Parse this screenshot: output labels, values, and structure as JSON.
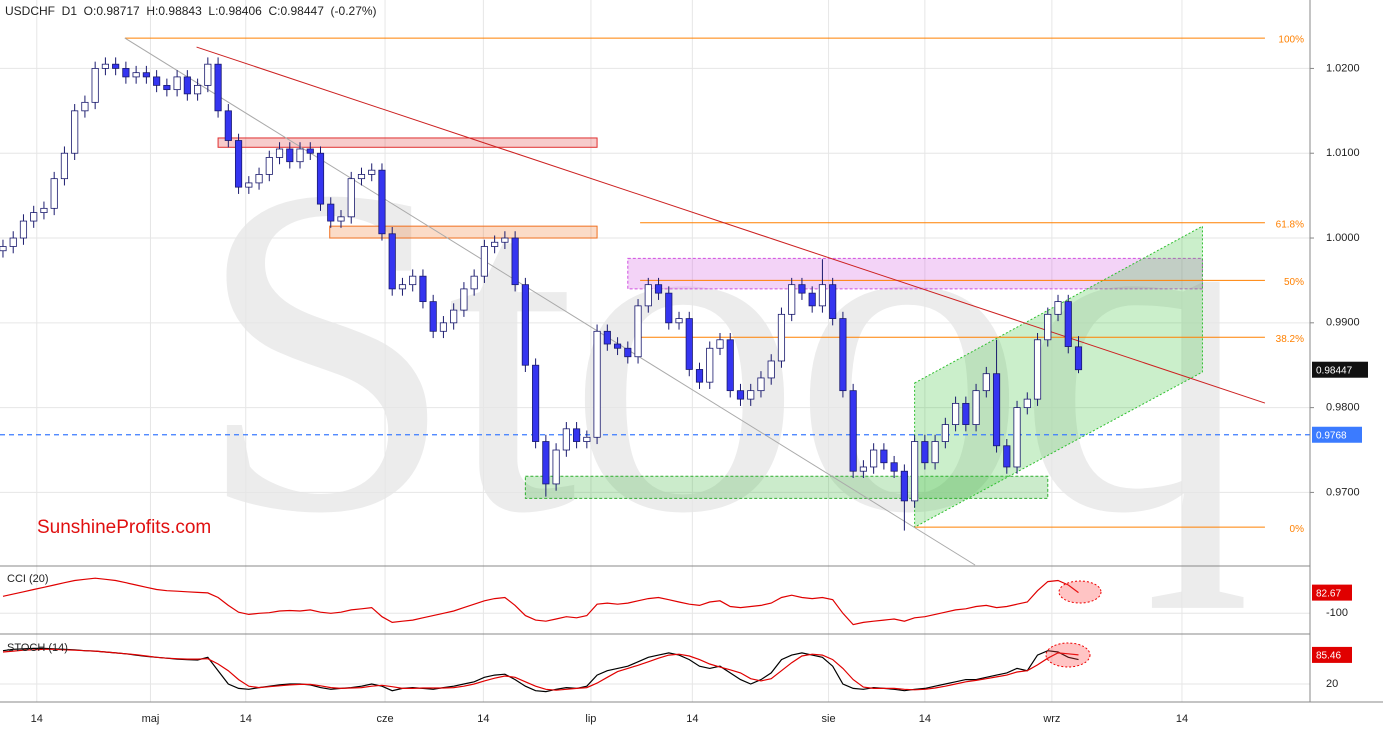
{
  "chart_data": [
    {
      "type": "candlestick",
      "header": "USDCHF  D1  O:0.98717  H:0.98843  L:0.98406  C:0.98447  (-0.27%)",
      "watermark": "Stooq",
      "brand": "SunshineProfits.com",
      "up_color": "#ffffff",
      "down_color": "#3535f0",
      "outline_color": "#1a1a6e",
      "open": [
        0.9985,
        0.999,
        1.0,
        1.002,
        1.003,
        1.0035,
        1.007,
        1.01,
        1.015,
        1.016,
        1.02,
        1.0205,
        1.02,
        1.019,
        1.0195,
        1.019,
        1.018,
        1.0175,
        1.019,
        1.017,
        1.018,
        1.0205,
        1.015,
        1.0115,
        1.006,
        1.0065,
        1.0075,
        1.0095,
        1.0105,
        1.009,
        1.0105,
        1.01,
        1.004,
        1.002,
        1.0025,
        1.007,
        1.0075,
        1.008,
        1.0005,
        0.994,
        0.9945,
        0.9955,
        0.9925,
        0.989,
        0.99,
        0.9915,
        0.994,
        0.9955,
        0.999,
        0.9995,
        1.0,
        0.9945,
        0.985,
        0.976,
        0.971,
        0.975,
        0.9775,
        0.976,
        0.9765,
        0.989,
        0.9875,
        0.987,
        0.986,
        0.992,
        0.9945,
        0.9935,
        0.99,
        0.9905,
        0.9845,
        0.983,
        0.987,
        0.988,
        0.982,
        0.981,
        0.982,
        0.9835,
        0.9855,
        0.991,
        0.9945,
        0.9935,
        0.992,
        0.9945,
        0.9905,
        0.982,
        0.9725,
        0.973,
        0.975,
        0.9735,
        0.9725,
        0.969,
        0.976,
        0.9735,
        0.976,
        0.978,
        0.9805,
        0.978,
        0.982,
        0.984,
        0.9755,
        0.973,
        0.98,
        0.981,
        0.988,
        0.991,
        0.9925,
        0.98717
      ],
      "high": [
        0.9998,
        1.0008,
        1.0028,
        1.0038,
        1.0043,
        1.0078,
        1.0108,
        1.0158,
        1.0168,
        1.0208,
        1.0213,
        1.0213,
        1.0208,
        1.0203,
        1.0203,
        1.0198,
        1.0188,
        1.0198,
        1.0198,
        1.0188,
        1.0213,
        1.0213,
        1.0158,
        1.0123,
        1.0073,
        1.0083,
        1.0103,
        1.0113,
        1.0113,
        1.0113,
        1.0113,
        1.0108,
        1.0048,
        1.0033,
        1.0078,
        1.0083,
        1.0088,
        1.0088,
        1.0013,
        0.9953,
        0.9963,
        0.9963,
        0.9933,
        0.9908,
        0.9923,
        0.9948,
        0.9963,
        0.9998,
        1.0003,
        1.0008,
        1.0008,
        0.9953,
        0.9858,
        0.9768,
        0.9758,
        0.9783,
        0.9783,
        0.9773,
        0.9898,
        0.9898,
        0.9883,
        0.9878,
        0.9928,
        0.9953,
        0.9953,
        0.9943,
        0.9913,
        0.9913,
        0.9853,
        0.9878,
        0.9888,
        0.9888,
        0.9828,
        0.9828,
        0.9843,
        0.9863,
        0.9918,
        0.9953,
        0.9953,
        0.9943,
        0.9975,
        0.9953,
        0.9913,
        0.9828,
        0.9738,
        0.9758,
        0.9758,
        0.9743,
        0.9733,
        0.9768,
        0.9768,
        0.9768,
        0.9788,
        0.9813,
        0.9813,
        0.9828,
        0.9848,
        0.988,
        0.9763,
        0.9808,
        0.9818,
        0.9888,
        0.9918,
        0.9933,
        0.9933,
        0.98843
      ],
      "low": [
        0.9977,
        0.9982,
        0.9992,
        1.0012,
        1.0022,
        1.0027,
        1.0062,
        1.0092,
        1.0142,
        1.0152,
        1.0192,
        1.0192,
        1.0182,
        1.0182,
        1.0182,
        1.0172,
        1.0167,
        1.0167,
        1.0162,
        1.0162,
        1.0172,
        1.0142,
        1.0107,
        1.0052,
        1.0052,
        1.0057,
        1.0067,
        1.0087,
        1.0082,
        1.0082,
        1.0092,
        1.0032,
        1.0012,
        1.0012,
        1.0017,
        1.0062,
        1.0067,
        0.9997,
        0.9932,
        0.9932,
        0.9937,
        0.9917,
        0.9882,
        0.9882,
        0.9892,
        0.9907,
        0.9932,
        0.9947,
        0.9982,
        0.9987,
        0.9937,
        0.9842,
        0.9752,
        0.9695,
        0.9702,
        0.9742,
        0.9752,
        0.9752,
        0.9757,
        0.9867,
        0.9862,
        0.9852,
        0.9852,
        0.9912,
        0.9927,
        0.9892,
        0.9892,
        0.9837,
        0.9822,
        0.9822,
        0.9862,
        0.9812,
        0.9802,
        0.9802,
        0.9812,
        0.9827,
        0.9847,
        0.9902,
        0.9927,
        0.9912,
        0.9912,
        0.9897,
        0.9812,
        0.9717,
        0.9717,
        0.9722,
        0.9727,
        0.9717,
        0.9655,
        0.9682,
        0.9727,
        0.9727,
        0.9752,
        0.9772,
        0.9772,
        0.9772,
        0.9812,
        0.9747,
        0.9722,
        0.9722,
        0.9792,
        0.9802,
        0.9872,
        0.9902,
        0.9864,
        0.98406
      ],
      "close": [
        0.999,
        1.0,
        1.002,
        1.003,
        1.0035,
        1.007,
        1.01,
        1.015,
        1.016,
        1.02,
        1.0205,
        1.02,
        1.019,
        1.0195,
        1.019,
        1.018,
        1.0175,
        1.019,
        1.017,
        1.018,
        1.0205,
        1.015,
        1.0115,
        1.006,
        1.0065,
        1.0075,
        1.0095,
        1.0105,
        1.009,
        1.0105,
        1.01,
        1.004,
        1.002,
        1.0025,
        1.007,
        1.0075,
        1.008,
        1.0005,
        0.994,
        0.9945,
        0.9955,
        0.9925,
        0.989,
        0.99,
        0.9915,
        0.994,
        0.9955,
        0.999,
        0.9995,
        1.0,
        0.9945,
        0.985,
        0.976,
        0.971,
        0.975,
        0.9775,
        0.976,
        0.9765,
        0.989,
        0.9875,
        0.987,
        0.986,
        0.992,
        0.9945,
        0.9935,
        0.99,
        0.9905,
        0.9845,
        0.983,
        0.987,
        0.988,
        0.982,
        0.981,
        0.982,
        0.9835,
        0.9855,
        0.991,
        0.9945,
        0.9935,
        0.992,
        0.9945,
        0.9905,
        0.982,
        0.9725,
        0.973,
        0.975,
        0.9735,
        0.9725,
        0.969,
        0.976,
        0.9735,
        0.976,
        0.978,
        0.9805,
        0.978,
        0.982,
        0.984,
        0.9755,
        0.973,
        0.98,
        0.981,
        0.988,
        0.991,
        0.9925,
        0.9872,
        0.98447
      ],
      "xlim": [
        -0.29,
        127.6
      ],
      "ylim": [
        0.96144,
        1.02807
      ],
      "yticks": [
        {
          "value": 1.02,
          "label": "1.0200"
        },
        {
          "value": 1.01,
          "label": "1.0100"
        },
        {
          "value": 1.0,
          "label": "1.0000"
        },
        {
          "value": 0.99,
          "label": "0.9900"
        },
        {
          "value": 0.98,
          "label": "0.9800"
        },
        {
          "value": 0.97,
          "label": "0.9700"
        }
      ],
      "xticks": [
        {
          "value": 3.3,
          "label": "14"
        },
        {
          "value": 14.4,
          "label": "maj"
        },
        {
          "value": 23.7,
          "label": "14"
        },
        {
          "value": 37.3,
          "label": "cze"
        },
        {
          "value": 46.9,
          "label": "14"
        },
        {
          "value": 57.4,
          "label": "lip"
        },
        {
          "value": 67.3,
          "label": "14"
        },
        {
          "value": 80.6,
          "label": "sie"
        },
        {
          "value": 90.0,
          "label": "14"
        },
        {
          "value": 102.4,
          "label": "wrz"
        },
        {
          "value": 115.1,
          "label": "14"
        }
      ],
      "grid": true,
      "zones": [
        {
          "x": [
            21.0,
            58.0
          ],
          "y": [
            1.0107,
            1.0118
          ],
          "color": "#e03030"
        },
        {
          "x": [
            31.9,
            58.0
          ],
          "y": [
            1.0,
            1.0014
          ],
          "color": "#f07020"
        },
        {
          "x": [
            61.0,
            117.1
          ],
          "y": [
            0.994,
            0.9976
          ],
          "color": "#d050e0"
        },
        {
          "x": [
            51.0,
            102.0
          ],
          "y": [
            0.9693,
            0.9719
          ],
          "color": "#30b030"
        }
      ],
      "trendlines": [
        {
          "x": [
            18.9,
            123.2
          ],
          "y": [
            1.02252,
            0.98054
          ],
          "color": "#cc2020"
        },
        {
          "x": [
            11.9,
            94.9
          ],
          "y": [
            1.02358,
            0.96144
          ],
          "color": "#aaaaaa"
        }
      ],
      "channel": {
        "x": [
          89.0,
          117.1,
          117.1,
          89.0
        ],
        "y": [
          0.9829,
          1.0014,
          0.9842,
          0.9659
        ],
        "color": "#30c030"
      },
      "fib_levels": [
        {
          "label": "100%",
          "value": 1.02358,
          "x": [
            11.9,
            123.2
          ]
        },
        {
          "label": "61.8%",
          "value": 1.0018,
          "x": [
            62.2,
            123.2
          ]
        },
        {
          "label": "50%",
          "value": 0.995,
          "x": [
            62.2,
            123.2
          ]
        },
        {
          "label": "38.2%",
          "value": 0.9883,
          "x": [
            62.2,
            123.2
          ]
        },
        {
          "label": "0%",
          "value": 0.9659,
          "x": [
            89.0,
            123.2
          ]
        }
      ],
      "fib_color": "#ff8000",
      "hline": {
        "value": 0.9768,
        "color": "#3b7bff"
      }
    },
    {
      "type": "line",
      "title": "CCI (20)",
      "series": [
        {
          "color": "#e00000",
          "values": [
            50,
            70,
            90,
            110,
            130,
            150,
            170,
            190,
            200,
            210,
            200,
            190,
            170,
            150,
            130,
            110,
            100,
            95,
            90,
            85,
            80,
            40,
            -30,
            -90,
            -110,
            -100,
            -95,
            -80,
            -75,
            -80,
            -70,
            -90,
            -100,
            -90,
            -70,
            -60,
            -50,
            -130,
            -180,
            -170,
            -160,
            -140,
            -120,
            -100,
            -80,
            -50,
            -20,
            10,
            30,
            40,
            -30,
            -120,
            -160,
            -170,
            -150,
            -130,
            -140,
            -120,
            -20,
            -10,
            -20,
            -10,
            10,
            30,
            40,
            20,
            0,
            -20,
            -30,
            0,
            10,
            -40,
            -50,
            -40,
            -30,
            -10,
            40,
            60,
            40,
            30,
            40,
            20,
            -100,
            -200,
            -180,
            -170,
            -160,
            -150,
            -170,
            -140,
            -130,
            -110,
            -90,
            -70,
            -60,
            -40,
            -30,
            -50,
            -40,
            -20,
            0,
            100,
            180,
            190,
            150,
            82.67
          ]
        }
      ],
      "ylim": [
        -265,
        300
      ],
      "yticks": [
        -100
      ]
    },
    {
      "type": "line",
      "title": "STOCH (14)",
      "series": [
        {
          "color": "#000000",
          "values": [
            95,
            98,
            99,
            100,
            100,
            99,
            98,
            97,
            95,
            94,
            92,
            90,
            88,
            85,
            82,
            80,
            78,
            76,
            75,
            74,
            80,
            50,
            20,
            10,
            8,
            12,
            15,
            18,
            20,
            20,
            18,
            12,
            8,
            10,
            12,
            15,
            20,
            15,
            5,
            10,
            12,
            10,
            8,
            12,
            15,
            20,
            25,
            35,
            40,
            42,
            30,
            15,
            5,
            3,
            8,
            12,
            10,
            15,
            40,
            50,
            55,
            60,
            70,
            80,
            85,
            90,
            85,
            75,
            60,
            55,
            60,
            45,
            30,
            20,
            30,
            45,
            75,
            85,
            90,
            85,
            80,
            60,
            20,
            10,
            8,
            12,
            10,
            8,
            5,
            8,
            10,
            15,
            20,
            25,
            30,
            30,
            35,
            40,
            45,
            55,
            50,
            85,
            95,
            92,
            80,
            75
          ]
        },
        {
          "color": "#e00000",
          "values": [
            92,
            94,
            96,
            97,
            98,
            98,
            97,
            96,
            95,
            94,
            92,
            90,
            88,
            86,
            83,
            80,
            78,
            77,
            76,
            76,
            77,
            65,
            50,
            30,
            15,
            12,
            14,
            16,
            18,
            19,
            19,
            16,
            12,
            10,
            11,
            12,
            15,
            17,
            14,
            10,
            10,
            11,
            11,
            11,
            12,
            15,
            20,
            27,
            33,
            38,
            35,
            25,
            15,
            8,
            6,
            8,
            10,
            12,
            22,
            35,
            48,
            55,
            62,
            70,
            78,
            85,
            87,
            83,
            75,
            65,
            58,
            52,
            45,
            32,
            27,
            32,
            50,
            68,
            83,
            87,
            85,
            75,
            55,
            30,
            13,
            10,
            10,
            10,
            8,
            7,
            8,
            11,
            15,
            20,
            25,
            28,
            32,
            36,
            40,
            47,
            50,
            63,
            78,
            90,
            88,
            85.46
          ]
        }
      ],
      "ylim": [
        -16,
        128
      ],
      "yticks": [
        20
      ]
    }
  ]
}
